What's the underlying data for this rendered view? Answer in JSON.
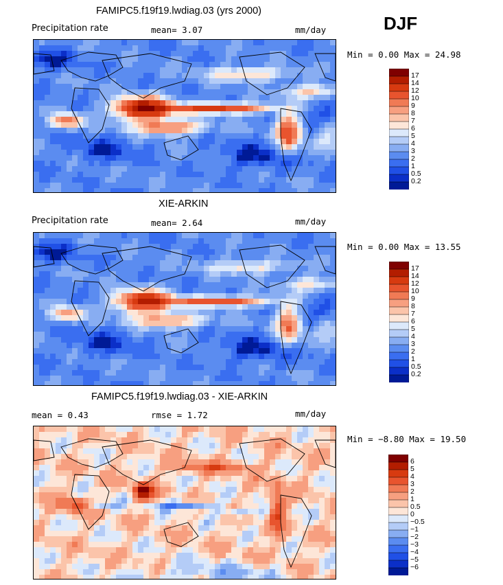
{
  "season": "DJF",
  "panels": [
    {
      "title": "FAMIPC5.f19f19.lwdiag.03 (yrs 2000)",
      "left_label": "Precipitation rate",
      "center_label": "mean=   3.07",
      "units": "mm/day",
      "minmax": "Min =    0.00 Max =  24.98",
      "palette": "prec",
      "intensity": 1.0
    },
    {
      "title": "XIE-ARKIN",
      "left_label": "Precipitation rate",
      "center_label": "mean=   2.64",
      "units": "mm/day",
      "minmax": "Min =    0.00 Max =  13.55",
      "palette": "prec",
      "intensity": 0.85
    },
    {
      "title": "FAMIPC5.f19f19.lwdiag.03 - XIE-ARKIN",
      "left_label": "mean =   0.43",
      "center_label": "rmse =   1.72",
      "units": "mm/day",
      "minmax": "Min = −8.80 Max =  19.50",
      "palette": "diff",
      "intensity": 1.0
    }
  ],
  "colorbars": {
    "prec": {
      "labels": [
        "17",
        "14",
        "12",
        "10",
        "9",
        "8",
        "7",
        "6",
        "5",
        "4",
        "3",
        "2",
        "1",
        "0.5",
        "0.2"
      ],
      "colors": [
        "#7f0000",
        "#b31d00",
        "#d73a10",
        "#e8542e",
        "#f07a55",
        "#f79f80",
        "#fbc4aa",
        "#fde6d8",
        "#dce9fb",
        "#b4ccf7",
        "#88adf2",
        "#5b8cf0",
        "#3a6ef0",
        "#2050e6",
        "#0b2fc8",
        "#001a96"
      ]
    },
    "diff": {
      "labels": [
        "6",
        "5",
        "4",
        "3",
        "2",
        "1",
        "0.5",
        "0",
        "−0.5",
        "−1",
        "−2",
        "−3",
        "−4",
        "−5",
        "−6"
      ],
      "colors": [
        "#7f0000",
        "#b31d00",
        "#d73a10",
        "#e8542e",
        "#f07a55",
        "#f79f80",
        "#fbc4aa",
        "#fde6d8",
        "#dce9fb",
        "#b4ccf7",
        "#88adf2",
        "#5b8cf0",
        "#3a6ef0",
        "#2050e6",
        "#0b2fc8",
        "#001a96"
      ]
    }
  }
}
